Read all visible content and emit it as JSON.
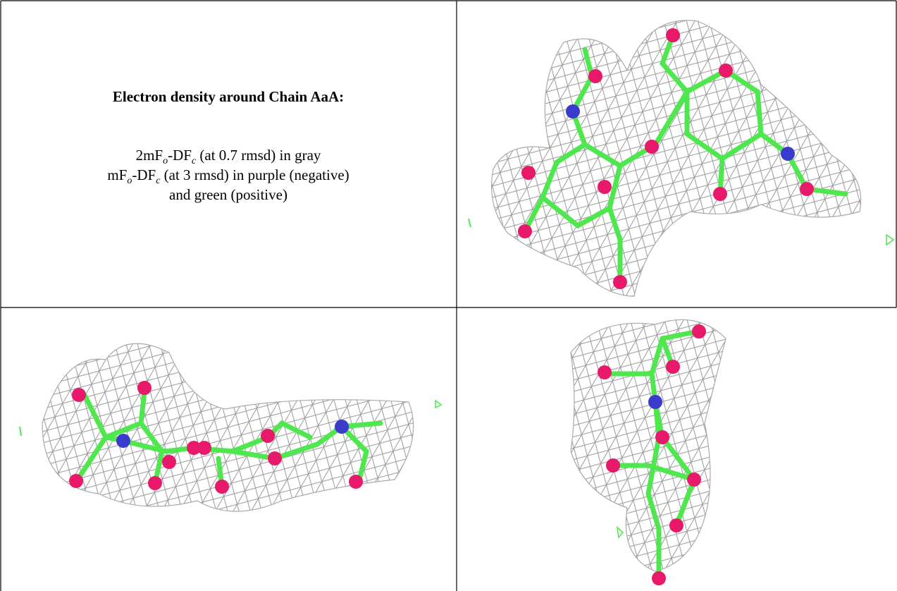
{
  "caption": {
    "title": "Electron density around Chain AaA:",
    "lines": [
      [
        {
          "text": "2mF"
        },
        {
          "text": "o",
          "sub": true
        },
        {
          "text": "-DF"
        },
        {
          "text": "c",
          "sub": true
        },
        {
          "text": " (at 0.7 rmsd) in gray"
        }
      ],
      [
        {
          "text": "mF"
        },
        {
          "text": "o",
          "sub": true
        },
        {
          "text": "-DF"
        },
        {
          "text": "c",
          "sub": true
        },
        {
          "text": " (at 3 rmsd) in purple (negative)"
        }
      ],
      [
        {
          "text": "and green (positive)"
        }
      ]
    ]
  }
}
